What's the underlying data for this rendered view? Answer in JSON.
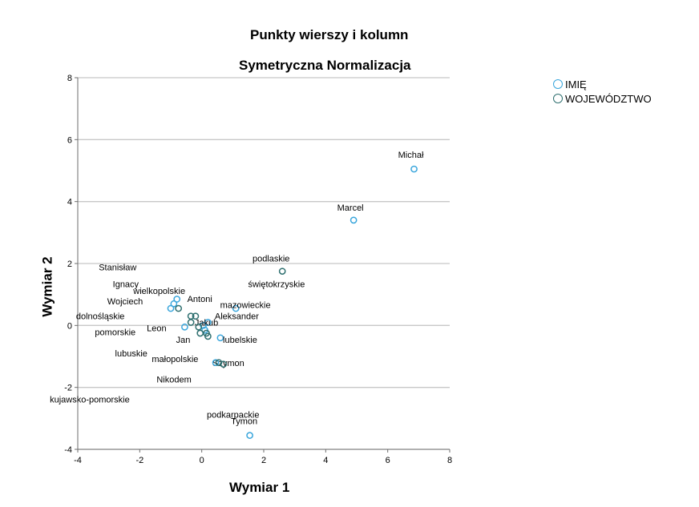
{
  "chart_data": {
    "type": "scatter",
    "title": "Punkty wierszy i kolumn",
    "subtitle": "Symetryczna Normalizacja",
    "xlabel": "Wymiar 1",
    "ylabel": "Wymiar 2",
    "xlim": [
      -4,
      8
    ],
    "ylim": [
      -4,
      8
    ],
    "xticks": [
      "-4",
      "-2",
      "0",
      "2",
      "4",
      "6",
      "8"
    ],
    "yticks": [
      "-4",
      "-2",
      "0",
      "2",
      "4",
      "6",
      "8"
    ],
    "grid": "horizontal",
    "legend_position": "right",
    "series": [
      {
        "name": "IMIĘ",
        "color": "#3aa6dc",
        "points": [
          {
            "label": "Michał",
            "x": 6.85,
            "y": 5.05
          },
          {
            "label": "Marcel",
            "x": 4.9,
            "y": 3.4
          },
          {
            "label": "Stanisław",
            "x": -0.8,
            "y": 0.85
          },
          {
            "label": "Ignacy",
            "x": -0.9,
            "y": 0.7
          },
          {
            "label": "Wojciech",
            "x": -1.0,
            "y": 0.55
          },
          {
            "label": "Antoni",
            "x": 1.1,
            "y": 0.55
          },
          {
            "label": "Aleksander",
            "x": 0.2,
            "y": 0.1
          },
          {
            "label": "Jakub",
            "x": 0.05,
            "y": 0.0
          },
          {
            "label": "Leon",
            "x": -0.55,
            "y": -0.05
          },
          {
            "label": "Jan",
            "x": 0.1,
            "y": -0.15
          },
          {
            "label": "Szymon",
            "x": 0.6,
            "y": -0.4
          },
          {
            "label": "Nikodem",
            "x": 0.45,
            "y": -1.2
          },
          {
            "label": "Tymon",
            "x": 1.55,
            "y": -3.55
          }
        ]
      },
      {
        "name": "WOJEWÓDZTWO",
        "color": "#2e6f6f",
        "points": [
          {
            "label": "podlaskie",
            "x": 2.6,
            "y": 1.75
          },
          {
            "label": "świętokrzyskie",
            "x": -0.2,
            "y": 0.3
          },
          {
            "label": "wielkopolskie",
            "x": -0.75,
            "y": 0.55
          },
          {
            "label": "mazowieckie",
            "x": -0.35,
            "y": 0.3
          },
          {
            "label": "dolnośląskie",
            "x": -0.35,
            "y": 0.1
          },
          {
            "label": "pomorskie",
            "x": -0.1,
            "y": -0.05
          },
          {
            "label": "lubelskie",
            "x": 0.15,
            "y": -0.25
          },
          {
            "label": "lubuskie",
            "x": -0.05,
            "y": -0.25
          },
          {
            "label": "małopolskie",
            "x": 0.2,
            "y": -0.35
          },
          {
            "label": "kujawsko-pomorskie",
            "x": 0.55,
            "y": -1.2
          },
          {
            "label": "podkarpackie",
            "x": 0.7,
            "y": -1.25
          }
        ]
      }
    ]
  }
}
